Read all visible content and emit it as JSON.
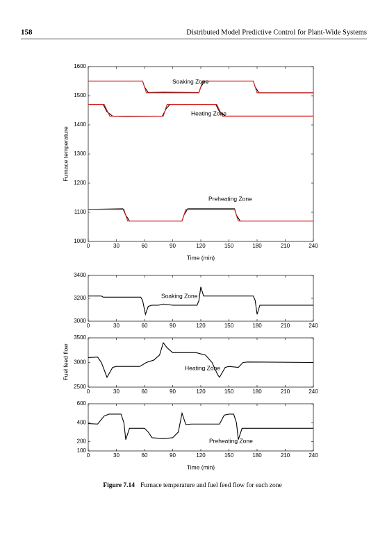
{
  "header": {
    "page_number": "158",
    "title": "Distributed Model Predictive Control for Plant-Wide Systems"
  },
  "chart_data": [
    {
      "type": "line",
      "ylabel": "Furnace temperature",
      "xlabel": "Time (min)",
      "xlim": [
        0,
        240
      ],
      "xticks": [
        0,
        30,
        60,
        90,
        120,
        150,
        180,
        210,
        240
      ],
      "ylim": [
        1000,
        1600
      ],
      "yticks": [
        1000,
        1100,
        1200,
        1300,
        1400,
        1500,
        1600
      ],
      "series": [
        {
          "color": "#000000",
          "x": [
            0,
            58,
            60,
            64,
            80,
            118,
            120,
            124,
            176,
            178,
            182,
            240
          ],
          "values": [
            1550,
            1550,
            1530,
            1511,
            1512,
            1511,
            1530,
            1550,
            1550,
            1530,
            1510,
            1510
          ]
        },
        {
          "color": "#d62020",
          "x": [
            0,
            58,
            62,
            118,
            122,
            176,
            180,
            240
          ],
          "values": [
            1550,
            1550,
            1510,
            1510,
            1550,
            1550,
            1510,
            1510
          ]
        },
        {
          "color": "#000000",
          "x": [
            0,
            16,
            20,
            26,
            40,
            79,
            83,
            87,
            136,
            140,
            146,
            240
          ],
          "values": [
            1470,
            1470,
            1445,
            1430,
            1429,
            1430,
            1455,
            1470,
            1470,
            1445,
            1430,
            1430
          ]
        },
        {
          "color": "#d62020",
          "x": [
            0,
            17,
            23,
            80,
            84,
            137,
            143,
            240
          ],
          "values": [
            1470,
            1470,
            1430,
            1430,
            1470,
            1470,
            1430,
            1430
          ]
        },
        {
          "color": "#000000",
          "x": [
            0,
            37,
            40,
            44,
            100,
            102,
            106,
            156,
            158,
            162,
            240
          ],
          "values": [
            1110,
            1112,
            1090,
            1070,
            1070,
            1090,
            1112,
            1112,
            1090,
            1070,
            1070
          ]
        },
        {
          "color": "#d62020",
          "x": [
            0,
            38,
            42,
            100,
            104,
            156,
            160,
            240
          ],
          "values": [
            1110,
            1110,
            1070,
            1070,
            1110,
            1110,
            1070,
            1070
          ]
        }
      ],
      "annotations": [
        {
          "text": "Soaking Zone"
        },
        {
          "text": "Heating Zone"
        },
        {
          "text": "Preheating Zone"
        }
      ]
    },
    {
      "type": "line",
      "xlim": [
        0,
        240
      ],
      "xticks": [
        0,
        30,
        60,
        90,
        120,
        150,
        180,
        210,
        240
      ],
      "ylim": [
        3000,
        3400
      ],
      "yticks": [
        3000,
        3200,
        3400
      ],
      "series": [
        {
          "color": "#000000",
          "x": [
            0,
            14,
            16,
            56,
            58,
            61,
            64,
            68,
            75,
            80,
            90,
            116,
            118,
            120,
            123,
            130,
            176,
            178,
            180,
            183,
            190,
            240
          ],
          "values": [
            3220,
            3220,
            3210,
            3210,
            3180,
            3060,
            3130,
            3140,
            3140,
            3150,
            3140,
            3140,
            3180,
            3300,
            3220,
            3220,
            3220,
            3180,
            3060,
            3140,
            3140,
            3140
          ]
        }
      ],
      "annotations": [
        {
          "text": "Soaking Zone"
        }
      ]
    },
    {
      "type": "line",
      "ylabel": "Fuel feed flow",
      "xlim": [
        0,
        240
      ],
      "xticks": [
        0,
        30,
        60,
        90,
        120,
        150,
        180,
        210,
        240
      ],
      "ylim": [
        2500,
        3500
      ],
      "yticks": [
        2500,
        3000,
        3500
      ],
      "series": [
        {
          "color": "#000000",
          "x": [
            0,
            10,
            14,
            20,
            26,
            30,
            55,
            62,
            70,
            76,
            80,
            84,
            90,
            115,
            125,
            132,
            138,
            140,
            146,
            150,
            160,
            165,
            170,
            240
          ],
          "values": [
            3100,
            3110,
            3000,
            2700,
            2900,
            2920,
            2920,
            3000,
            3050,
            3150,
            3400,
            3300,
            3200,
            3200,
            3150,
            3000,
            2750,
            2700,
            2900,
            2920,
            2900,
            3000,
            3010,
            3000
          ]
        }
      ],
      "annotations": [
        {
          "text": "Heating Zone"
        }
      ]
    },
    {
      "type": "line",
      "xlabel": "Time (min)",
      "xlim": [
        0,
        240
      ],
      "xticks": [
        0,
        30,
        60,
        90,
        120,
        150,
        180,
        210,
        240
      ],
      "ylim": [
        100,
        600
      ],
      "yticks": [
        100,
        200,
        400,
        600
      ],
      "series": [
        {
          "color": "#000000",
          "x": [
            0,
            10,
            17,
            22,
            35,
            38,
            40,
            44,
            60,
            64,
            68,
            80,
            90,
            96,
            100,
            104,
            110,
            140,
            145,
            150,
            155,
            158,
            160,
            164,
            240
          ],
          "values": [
            390,
            385,
            470,
            490,
            490,
            400,
            220,
            340,
            340,
            300,
            240,
            230,
            240,
            300,
            500,
            380,
            385,
            385,
            480,
            490,
            490,
            400,
            220,
            340,
            340
          ]
        }
      ],
      "annotations": [
        {
          "text": "Preheating Zone"
        }
      ]
    }
  ],
  "caption": {
    "label": "Figure 7.14",
    "text": "Furnace temperature and fuel feed flow for each zone"
  }
}
